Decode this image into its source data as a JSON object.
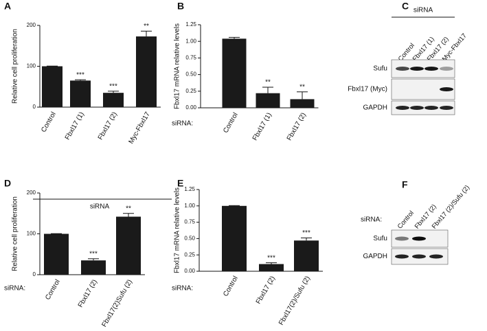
{
  "chart_data": [
    {
      "panel": "A",
      "type": "bar",
      "ylabel": "Relative cell proliferation",
      "categories": [
        "Control",
        "Fbxl17 (1)",
        "Fbxl17 (2)",
        "Myc-Fbxl17"
      ],
      "values": [
        100,
        65,
        35,
        173
      ],
      "errors": [
        0.5,
        2,
        4,
        13
      ],
      "annotations": [
        null,
        "***",
        "***",
        "**"
      ],
      "color": "#1a1a1a",
      "ylim": [
        0,
        200
      ],
      "yticks": [
        0,
        100,
        200
      ],
      "xgroup_label": "siRNA"
    },
    {
      "panel": "B",
      "type": "bar",
      "ylabel": "Fbxl17 mRNA relative levels",
      "categories": [
        "Control",
        "Fbxl17 (1)",
        "Fbxl17 (2)"
      ],
      "values": [
        1.04,
        0.22,
        0.13
      ],
      "errors": [
        0.02,
        0.09,
        0.11
      ],
      "annotations": [
        null,
        "**",
        "**"
      ],
      "color": "#1a1a1a",
      "ylim": [
        0,
        1.25
      ],
      "yticks": [
        {
          "value": 0,
          "label": "0.00"
        },
        {
          "value": 0.25,
          "label": "0.25"
        },
        {
          "value": 0.5,
          "label": "0.50"
        },
        {
          "value": 0.75,
          "label": "0.75"
        },
        {
          "value": 1,
          "label": "1.00"
        },
        {
          "value": 1.25,
          "label": "1.25"
        }
      ],
      "xprefix": "siRNA:"
    },
    {
      "panel": "D",
      "type": "bar",
      "ylabel": "Relative cell proliferation",
      "categories": [
        "Control",
        "Fbxl17 (2)",
        "Fbxl17(2)Sufu (2)"
      ],
      "values": [
        100,
        35,
        142
      ],
      "errors": [
        0.5,
        4,
        8
      ],
      "annotations": [
        null,
        "***",
        "**"
      ],
      "color": "#1a1a1a",
      "ylim": [
        0,
        200
      ],
      "yticks": [
        0,
        100,
        200
      ],
      "xprefix": "siRNA:"
    },
    {
      "panel": "E",
      "type": "bar",
      "ylabel": "Fbxl17 mRNA relative levels",
      "categories": [
        "Control",
        "Fbxl17 (2)",
        "Fbxl17(2)/Sufu (2)"
      ],
      "values": [
        1.0,
        0.11,
        0.47
      ],
      "errors": [
        0.005,
        0.02,
        0.04
      ],
      "annotations": [
        null,
        "***",
        "***"
      ],
      "color": "#1a1a1a",
      "ylim": [
        0,
        1.25
      ],
      "yticks": [
        {
          "value": 0,
          "label": "0.00"
        },
        {
          "value": 0.25,
          "label": "0.25"
        },
        {
          "value": 0.5,
          "label": "0.50"
        },
        {
          "value": 0.75,
          "label": "0.75"
        },
        {
          "value": 1,
          "label": "1.00"
        },
        {
          "value": 1.25,
          "label": "1.25"
        }
      ],
      "xprefix": "siRNA:"
    }
  ],
  "blots": [
    {
      "panel": "C",
      "header": "siRNA",
      "lanes": [
        "Control",
        "Fbxl17 (1)",
        "Fbxl17 (2)",
        "Myc-Fbxl17"
      ],
      "rows": [
        "Sufu",
        "Fbxl17 (Myc)",
        "GAPDH"
      ]
    },
    {
      "panel": "F",
      "header": "siRNA:",
      "lanes": [
        "Control",
        "Fbxl17 (2)",
        "Fbxl17 (2)/Sufu (2)"
      ],
      "rows": [
        "Sufu",
        "GAPDH"
      ]
    }
  ]
}
